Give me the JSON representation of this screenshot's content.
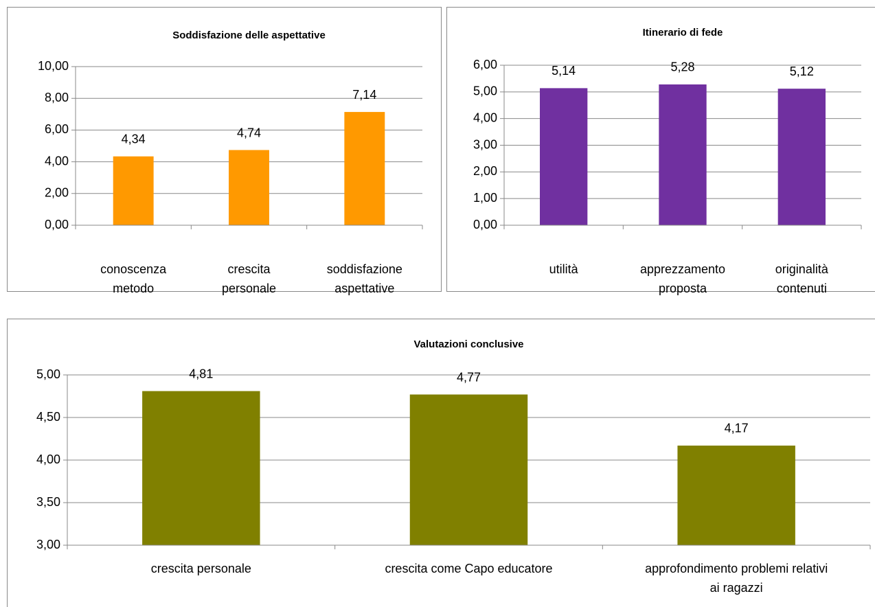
{
  "chart_data": [
    {
      "type": "bar",
      "title": "Soddisfazione delle aspettative",
      "categories": [
        "conoscenza metodo",
        "crescita personale",
        "soddisfazione aspettative"
      ],
      "values": [
        4.34,
        4.74,
        7.14
      ],
      "value_labels": [
        "4,34",
        "4,74",
        "7,14"
      ],
      "color": "#ff9900",
      "ylim": [
        0,
        10
      ],
      "yticks": [
        {
          "value": 0,
          "label": "0,00"
        },
        {
          "value": 2,
          "label": "2,00"
        },
        {
          "value": 4,
          "label": "4,00"
        },
        {
          "value": 6,
          "label": "6,00"
        },
        {
          "value": 8,
          "label": "8,00"
        },
        {
          "value": 10,
          "label": "10,00"
        }
      ],
      "grid": true
    },
    {
      "type": "bar",
      "title": "Itinerario di fede",
      "categories": [
        "utilità",
        "apprezzamento proposta",
        "originalità contenuti"
      ],
      "values": [
        5.14,
        5.28,
        5.12
      ],
      "value_labels": [
        "5,14",
        "5,28",
        "5,12"
      ],
      "color": "#7030a0",
      "ylim": [
        0,
        6
      ],
      "yticks": [
        {
          "value": 0,
          "label": "0,00"
        },
        {
          "value": 1,
          "label": "1,00"
        },
        {
          "value": 2,
          "label": "2,00"
        },
        {
          "value": 3,
          "label": "3,00"
        },
        {
          "value": 4,
          "label": "4,00"
        },
        {
          "value": 5,
          "label": "5,00"
        },
        {
          "value": 6,
          "label": "6,00"
        }
      ],
      "grid": true
    },
    {
      "type": "bar",
      "title": "Valutazioni conclusive",
      "categories": [
        "crescita personale",
        "crescita come Capo educatore",
        "approfondimento problemi relativi ai ragazzi"
      ],
      "values": [
        4.81,
        4.77,
        4.17
      ],
      "value_labels": [
        "4,81",
        "4,77",
        "4,17"
      ],
      "color": "#808000",
      "ylim": [
        3,
        5
      ],
      "yticks": [
        {
          "value": 3,
          "label": "3,00"
        },
        {
          "value": 3.5,
          "label": "3,50"
        },
        {
          "value": 4,
          "label": "4,00"
        },
        {
          "value": 4.5,
          "label": "4,50"
        },
        {
          "value": 5,
          "label": "5,00"
        }
      ],
      "grid": true
    }
  ]
}
